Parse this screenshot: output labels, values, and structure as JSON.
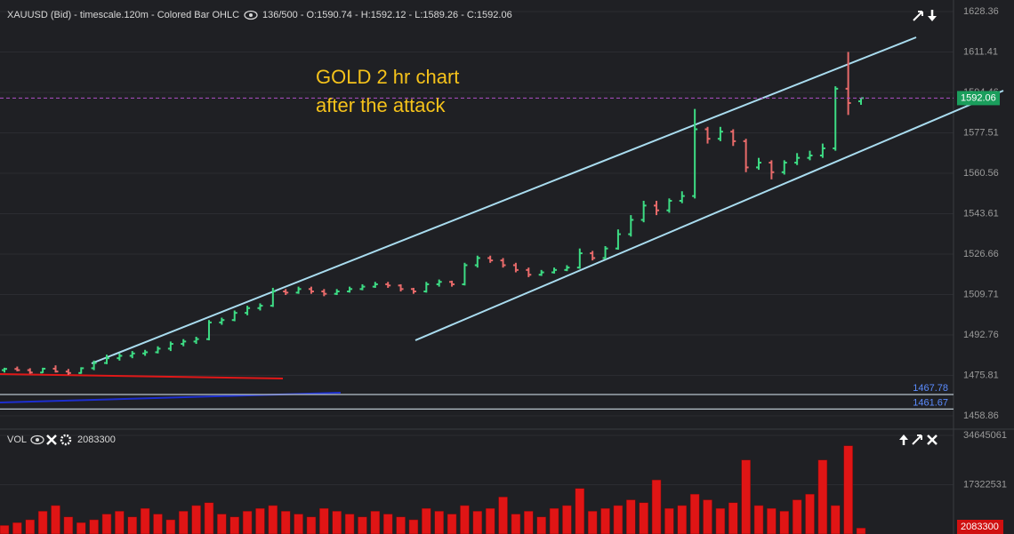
{
  "chart_data": {
    "type": "ohlc",
    "title": "XAUUSD (Bid) - timescale.120m - Colored Bar OHLC",
    "subtitle": "136/500 - O:1590.74 - H:1592.12 - L:1589.26 - C:1592.06",
    "annotations": [
      "GOLD 2 hr chart",
      "after the attack"
    ],
    "up_color": "#3ddc84",
    "down_color": "#e86a6a",
    "ylim": [
      1453.25,
      1633.2
    ],
    "yticks": [
      1628.36,
      1611.41,
      1594.46,
      1577.51,
      1560.56,
      1543.61,
      1526.66,
      1509.71,
      1492.76,
      1475.81,
      1458.86
    ],
    "grid": true,
    "levels": [
      1467.78,
      1461.67
    ],
    "ohlc": [
      [
        1478,
        1479,
        1477,
        1478.5
      ],
      [
        1478.5,
        1479.5,
        1477.5,
        1478
      ],
      [
        1478,
        1478.8,
        1476.5,
        1477
      ],
      [
        1477,
        1479,
        1476.8,
        1478.6
      ],
      [
        1478.6,
        1480,
        1477,
        1477.4
      ],
      [
        1477.4,
        1478.5,
        1476,
        1476.8
      ],
      [
        1476.8,
        1479.2,
        1476.5,
        1478.8
      ],
      [
        1478.8,
        1482,
        1478,
        1481
      ],
      [
        1481,
        1484.5,
        1480.5,
        1483
      ],
      [
        1483,
        1485,
        1482,
        1484
      ],
      [
        1484,
        1486,
        1483,
        1485
      ],
      [
        1485,
        1486.5,
        1484,
        1485.5
      ],
      [
        1485.5,
        1488,
        1485,
        1487
      ],
      [
        1487,
        1490,
        1486,
        1489
      ],
      [
        1489,
        1491,
        1488,
        1490
      ],
      [
        1490,
        1492,
        1489,
        1491
      ],
      [
        1491,
        1499,
        1490.5,
        1498
      ],
      [
        1498,
        1500,
        1497,
        1499
      ],
      [
        1499,
        1503,
        1498.5,
        1502
      ],
      [
        1502,
        1505,
        1501,
        1504
      ],
      [
        1504,
        1506,
        1503,
        1505
      ],
      [
        1505,
        1512.5,
        1504.5,
        1511
      ],
      [
        1511,
        1512,
        1509.5,
        1510.5
      ],
      [
        1510.5,
        1513,
        1510,
        1512
      ],
      [
        1512,
        1513,
        1510,
        1511
      ],
      [
        1511,
        1512,
        1509,
        1510
      ],
      [
        1510,
        1512,
        1509.5,
        1511
      ],
      [
        1511,
        1513,
        1510.5,
        1512
      ],
      [
        1512,
        1514,
        1511.5,
        1513
      ],
      [
        1513,
        1515,
        1512.5,
        1514
      ],
      [
        1514,
        1515,
        1512.5,
        1513.5
      ],
      [
        1513.5,
        1514,
        1511,
        1512
      ],
      [
        1512,
        1512.5,
        1510,
        1511
      ],
      [
        1511,
        1515,
        1510.5,
        1514
      ],
      [
        1514,
        1516,
        1513,
        1515
      ],
      [
        1515,
        1515.5,
        1513,
        1514
      ],
      [
        1514,
        1523,
        1513.5,
        1522
      ],
      [
        1522,
        1526,
        1521,
        1525
      ],
      [
        1525,
        1526,
        1523,
        1524
      ],
      [
        1524,
        1525,
        1521,
        1522
      ],
      [
        1522,
        1523,
        1519,
        1520
      ],
      [
        1520,
        1521,
        1517,
        1518
      ],
      [
        1518,
        1520,
        1517.5,
        1519
      ],
      [
        1519,
        1521,
        1518.5,
        1520
      ],
      [
        1520,
        1522,
        1519.5,
        1521
      ],
      [
        1521,
        1529,
        1520.5,
        1527
      ],
      [
        1527,
        1528,
        1524,
        1525
      ],
      [
        1525,
        1530,
        1524.5,
        1529
      ],
      [
        1529,
        1537,
        1528.5,
        1535
      ],
      [
        1535,
        1543,
        1534,
        1541
      ],
      [
        1541,
        1549,
        1540,
        1547
      ],
      [
        1547,
        1549,
        1543,
        1545
      ],
      [
        1545,
        1550,
        1544,
        1549
      ],
      [
        1549,
        1553,
        1548,
        1551
      ],
      [
        1551,
        1587.5,
        1550,
        1579
      ],
      [
        1579,
        1580,
        1573,
        1575
      ],
      [
        1575,
        1580,
        1574,
        1578
      ],
      [
        1578,
        1579,
        1572,
        1574
      ],
      [
        1574,
        1575,
        1561,
        1563
      ],
      [
        1563,
        1567,
        1562,
        1565
      ],
      [
        1565,
        1566,
        1558,
        1561
      ],
      [
        1561,
        1566,
        1560,
        1565
      ],
      [
        1565,
        1569,
        1564,
        1567
      ],
      [
        1567,
        1570,
        1566,
        1568
      ],
      [
        1568,
        1573,
        1567,
        1571
      ],
      [
        1571,
        1597,
        1570,
        1596
      ],
      [
        1596,
        1611.4,
        1585,
        1590
      ],
      [
        1590.74,
        1592.12,
        1589.26,
        1592.06
      ]
    ],
    "volume": {
      "label": "VOL",
      "color": "#e01515",
      "ylim": [
        0,
        36830000
      ],
      "yticks": [
        17322531,
        34645061
      ],
      "values": [
        3000000,
        4000000,
        5000000,
        8000000,
        10000000,
        6000000,
        4000000,
        5000000,
        7000000,
        8000000,
        6000000,
        9000000,
        7000000,
        5000000,
        8000000,
        10000000,
        11000000,
        7000000,
        6000000,
        8000000,
        9000000,
        10000000,
        8000000,
        7000000,
        6000000,
        9000000,
        8000000,
        7000000,
        6000000,
        8000000,
        7000000,
        6000000,
        5000000,
        9000000,
        8000000,
        7000000,
        10000000,
        8000000,
        9000000,
        13000000,
        7000000,
        8000000,
        6000000,
        9000000,
        10000000,
        16000000,
        8000000,
        9000000,
        10000000,
        12000000,
        11000000,
        19000000,
        9000000,
        10000000,
        14000000,
        12000000,
        9000000,
        11000000,
        26000000,
        10000000,
        9000000,
        8000000,
        12000000,
        14000000,
        26000000,
        10000000,
        31000000,
        2083300
      ]
    }
  }
}
